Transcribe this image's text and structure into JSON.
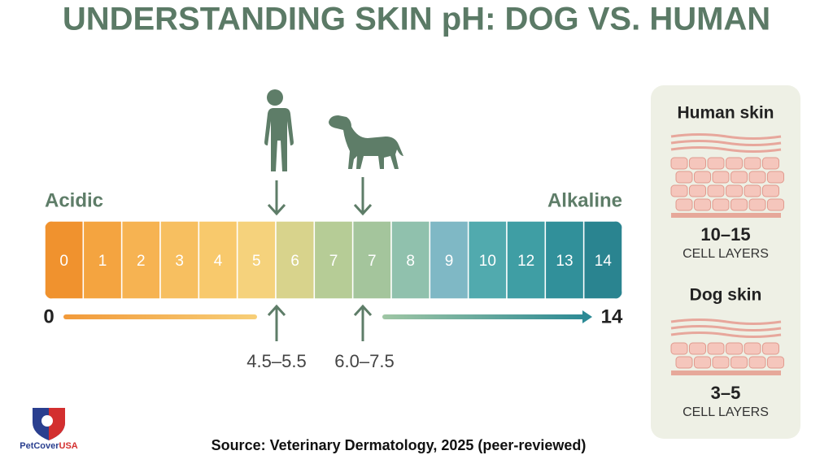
{
  "title": "UNDERSTANDING SKIN pH: DOG VS. HUMAN",
  "scale": {
    "left_label": "Acidic",
    "right_label": "Alkaline",
    "cells": [
      "0",
      "1",
      "2",
      "3",
      "4",
      "5",
      "6",
      "7",
      "7",
      "8",
      "9",
      "10",
      "12",
      "13",
      "14"
    ],
    "start": "0",
    "end": "14"
  },
  "markers": [
    {
      "range": "4.5–5.5"
    },
    {
      "range": "6.0–7.5"
    }
  ],
  "panel": {
    "sections": [
      {
        "title": "Human skin",
        "count": "10–15",
        "unit": "CELL LAYERS"
      },
      {
        "title": "Dog skin",
        "count": "3–5",
        "unit": "CELL LAYERS"
      }
    ]
  },
  "source": "Source: Veterinary Dermatology, 2025 (peer-reviewed)",
  "logo": {
    "brand": "PetCover",
    "suffix": "USA"
  }
}
